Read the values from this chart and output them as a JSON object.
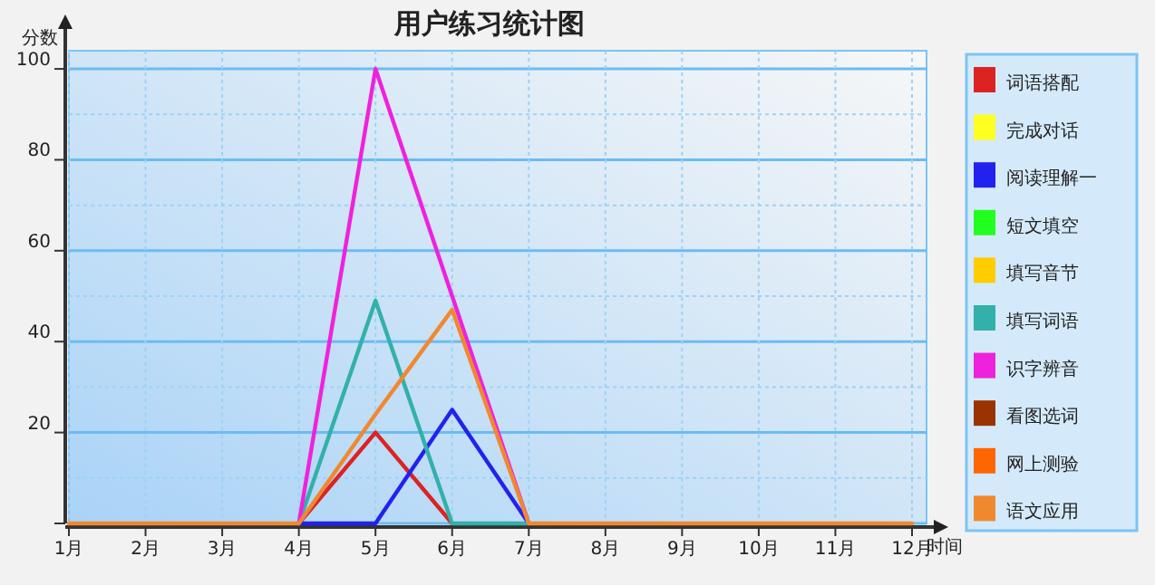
{
  "chart_data": {
    "type": "line",
    "title": "用户练习统计图",
    "xlabel": "时间",
    "ylabel": "分数",
    "categories": [
      "1月",
      "2月",
      "3月",
      "4月",
      "5月",
      "6月",
      "7月",
      "8月",
      "9月",
      "10月",
      "11月",
      "12月"
    ],
    "ylim": [
      0,
      104
    ],
    "yticks": [
      {
        "value": 0,
        "label": null
      },
      20,
      40,
      60,
      80,
      100
    ],
    "grid": true,
    "legend": "right",
    "marker": "none",
    "line_style": "solid",
    "series": [
      {
        "name": "词语搭配",
        "color": "#dd2222",
        "values": [
          null,
          null,
          null,
          0,
          20,
          0,
          null,
          null,
          null,
          null,
          null,
          null
        ]
      },
      {
        "name": "完成对话",
        "color": "#ffff20",
        "values": [
          null,
          null,
          null,
          null,
          null,
          null,
          null,
          null,
          null,
          null,
          null,
          null
        ]
      },
      {
        "name": "阅读理解一",
        "color": "#2222ee",
        "values": [
          null,
          null,
          null,
          0,
          0,
          25,
          0,
          null,
          null,
          null,
          null,
          null
        ]
      },
      {
        "name": "短文填空",
        "color": "#20ff20",
        "values": [
          null,
          null,
          null,
          null,
          null,
          null,
          null,
          null,
          null,
          null,
          null,
          null
        ]
      },
      {
        "name": "填写音节",
        "color": "#ffcc00",
        "values": [
          null,
          null,
          null,
          null,
          null,
          null,
          null,
          null,
          null,
          null,
          null,
          null
        ]
      },
      {
        "name": "填写词语",
        "color": "#33b0aa",
        "values": [
          null,
          null,
          null,
          0,
          49,
          0,
          0,
          null,
          null,
          null,
          null,
          null
        ]
      },
      {
        "name": "识字辨音",
        "color": "#ee22dd",
        "values": [
          null,
          null,
          null,
          0,
          100,
          50,
          0,
          null,
          null,
          null,
          null,
          null
        ]
      },
      {
        "name": "看图选词",
        "color": "#993300",
        "values": [
          null,
          null,
          null,
          null,
          null,
          null,
          null,
          null,
          null,
          null,
          null,
          null
        ]
      },
      {
        "name": "网上测验",
        "color": "#ff6600",
        "values": [
          null,
          null,
          null,
          null,
          null,
          null,
          null,
          null,
          null,
          null,
          null,
          null
        ]
      },
      {
        "name": "语文应用",
        "color": "#f08830",
        "values": [
          0,
          0,
          0,
          0,
          24,
          47,
          0,
          0,
          0,
          0,
          0,
          0
        ]
      }
    ]
  }
}
